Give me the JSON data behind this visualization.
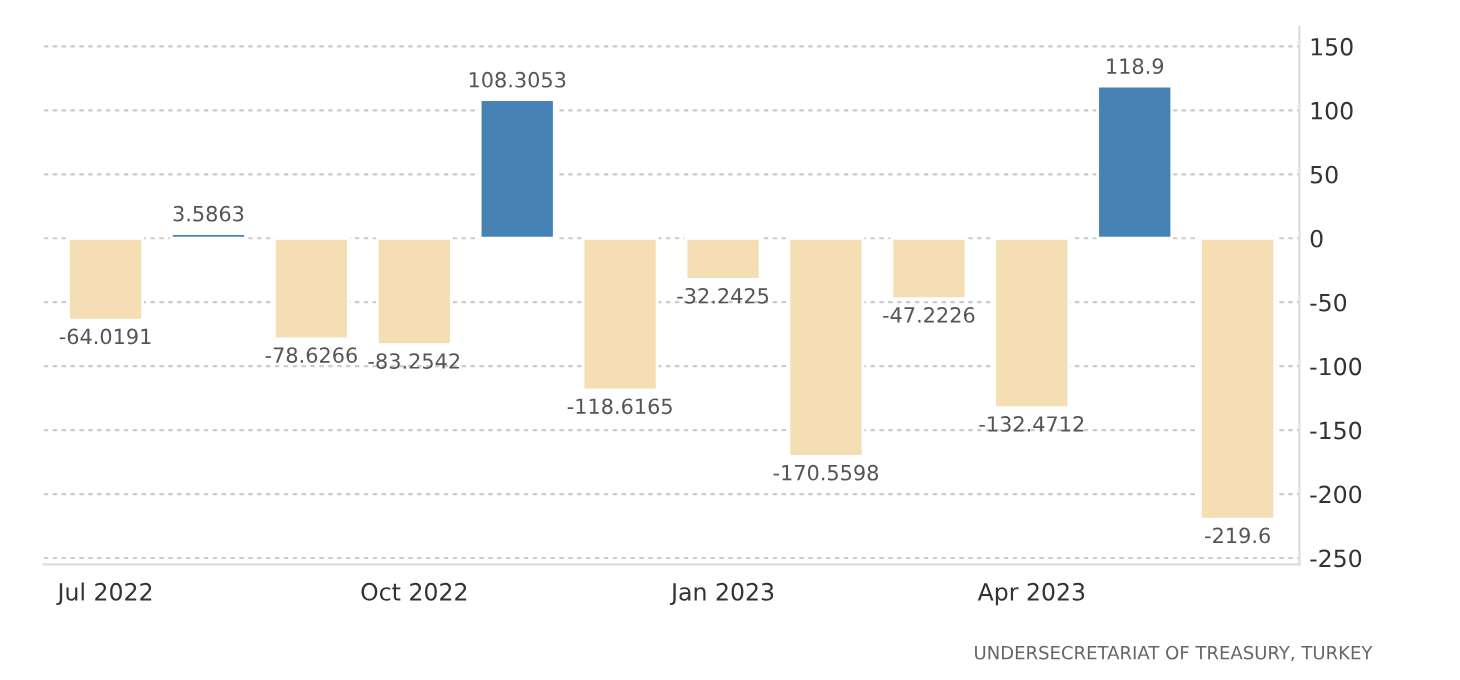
{
  "chart_data": {
    "type": "bar",
    "categories": [
      "Jul 2022",
      null,
      null,
      "Oct 2022",
      null,
      null,
      "Jan 2023",
      null,
      null,
      "Apr 2023",
      null,
      null
    ],
    "values": [
      -64.0191,
      3.5863,
      -78.6266,
      -83.2542,
      108.3053,
      -118.6165,
      -32.2425,
      -170.5598,
      -47.2226,
      -132.4712,
      118.9,
      -219.6
    ],
    "colors": [
      "#f5deb3",
      "#4682b4",
      "#f5deb3",
      "#f5deb3",
      "#4682b4",
      "#f5deb3",
      "#f5deb3",
      "#f5deb3",
      "#f5deb3",
      "#f5deb3",
      "#4682b4",
      "#f5deb3"
    ],
    "ylim": [
      -255,
      165
    ],
    "yticks": [
      150,
      100,
      50,
      0,
      -50,
      -100,
      -150,
      -200,
      -250
    ],
    "grid": "y",
    "data_labels": true,
    "annotations": [
      "UNDERSECRETARIAT OF TREASURY, TURKEY"
    ]
  }
}
